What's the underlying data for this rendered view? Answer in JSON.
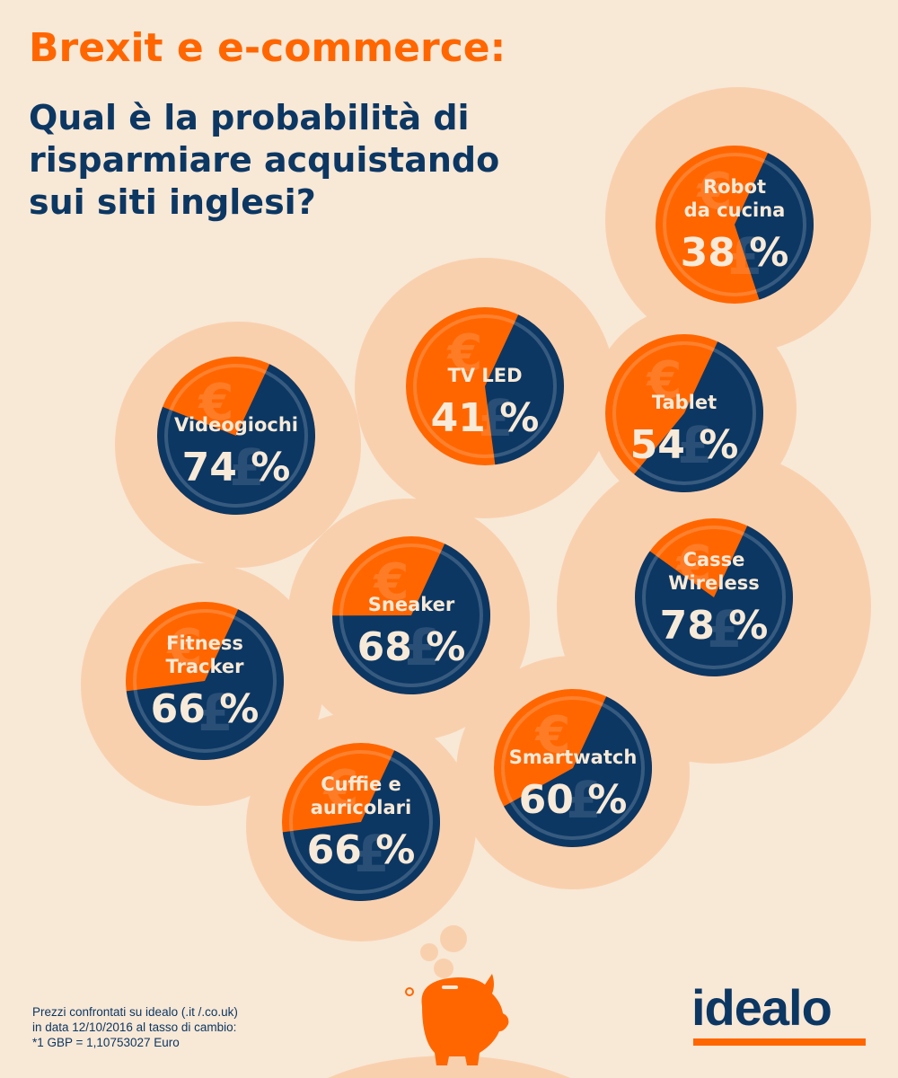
{
  "header": {
    "title": "Brexit e e-commerce:",
    "subtitle_lines": [
      "Qual è la probabilità di",
      "risparmiare acquistando",
      "sui siti inglesi?"
    ]
  },
  "colors": {
    "background": "#f8e8d6",
    "bubble": "#f9d0ae",
    "orange": "#ff6600",
    "navy": "#0c3763",
    "label": "#f8ead8"
  },
  "icons": [
    "euro-icon",
    "pound-icon",
    "piggy-bank-icon"
  ],
  "chart_data": {
    "type": "pie",
    "title": "Qual è la probabilità di risparmiare acquistando sui siti inglesi?",
    "unit": "%",
    "charts": [
      {
        "label_lines": [
          "Robot",
          "da cucina"
        ],
        "value": 38,
        "value_label": "38 %"
      },
      {
        "label_lines": [
          "TV LED"
        ],
        "value": 41,
        "value_label": "41 %"
      },
      {
        "label_lines": [
          "Tablet"
        ],
        "value": 54,
        "value_label": "54 %"
      },
      {
        "label_lines": [
          "Videogiochi"
        ],
        "value": 74,
        "value_label": "74 %"
      },
      {
        "label_lines": [
          "Casse",
          "Wireless"
        ],
        "value": 78,
        "value_label": "78 %"
      },
      {
        "label_lines": [
          "Sneaker"
        ],
        "value": 68,
        "value_label": "68 %"
      },
      {
        "label_lines": [
          "Fitness",
          "Tracker"
        ],
        "value": 66,
        "value_label": "66 %"
      },
      {
        "label_lines": [
          "Smartwatch"
        ],
        "value": 60,
        "value_label": "60 %"
      },
      {
        "label_lines": [
          "Cuffie e",
          "auricolari"
        ],
        "value": 66,
        "value_label": "66 %"
      }
    ]
  },
  "footer": {
    "note_lines": [
      "Prezzi confrontati su idealo (.it /.co.uk)",
      "in data 12/10/2016 al tasso di cambio:",
      "*1 GBP = 1,10753027 Euro"
    ],
    "logo": "idealo"
  }
}
